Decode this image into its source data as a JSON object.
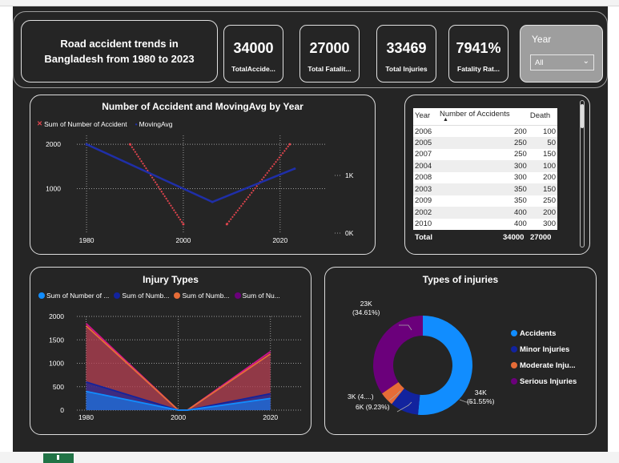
{
  "header": {
    "title": "Road accident trends in Bangladesh from 1980 to 2023",
    "kpis": [
      {
        "value": "34000",
        "label": "TotalAccide..."
      },
      {
        "value": "27000",
        "label": "Total Fatalit..."
      },
      {
        "value": "33469",
        "label": "Total Injuries"
      },
      {
        "value": "7941%",
        "label": "Fatality Rat..."
      }
    ],
    "slicer": {
      "title": "Year",
      "selected": "All"
    }
  },
  "colors": {
    "background": "#252525",
    "accidents_line": "#e0444d",
    "moving_avg": "#1f2fa8",
    "blue": "#118dff",
    "dark_blue": "#12239e",
    "orange": "#e66c37",
    "purple": "#6b007b"
  },
  "line_chart": {
    "title": "Number of Accident and MovingAvg by Year",
    "legend": [
      "Sum of Number of Accident",
      "MovingAvg"
    ],
    "y_ticks": [
      "2000",
      "1000"
    ],
    "y2_ticks": [
      "1K",
      "0K"
    ],
    "x_ticks": [
      "1980",
      "2000",
      "2020"
    ]
  },
  "table": {
    "columns": [
      "Year",
      "Number of Accidents",
      "Death"
    ],
    "rows": [
      [
        "2006",
        "200",
        "100"
      ],
      [
        "2005",
        "250",
        "50"
      ],
      [
        "2007",
        "250",
        "150"
      ],
      [
        "2004",
        "300",
        "100"
      ],
      [
        "2008",
        "300",
        "200"
      ],
      [
        "2003",
        "350",
        "150"
      ],
      [
        "2009",
        "350",
        "250"
      ],
      [
        "2002",
        "400",
        "200"
      ],
      [
        "2010",
        "400",
        "300"
      ]
    ],
    "total": {
      "label": "Total",
      "accidents": "34000",
      "death": "27000"
    }
  },
  "area_chart": {
    "title": "Injury Types",
    "legend": [
      "Sum of Number of ...",
      "Sum of Numb...",
      "Sum of Numb...",
      "Sum of Nu..."
    ],
    "y_ticks": [
      "2000",
      "1500",
      "1000",
      "500",
      "0"
    ],
    "x_ticks": [
      "1980",
      "2000",
      "2020"
    ]
  },
  "donut": {
    "title": "Types of injuries",
    "legend": [
      "Accidents",
      "Minor Injuries",
      "Moderate Inju...",
      "Serious Injuries"
    ],
    "labels": {
      "serious": [
        "23K",
        "(34.61%)"
      ],
      "accidents": [
        "34K",
        "(51.55%)"
      ],
      "moderate": "3K (4....)",
      "minor": "6K (9.23%)"
    }
  },
  "chart_data": [
    {
      "type": "line",
      "title": "Number of Accident and MovingAvg by Year",
      "x": [
        1980,
        2000,
        2020
      ],
      "series": [
        {
          "name": "Sum of Number of Accident",
          "x": [
            1989,
            2000,
            2009,
            2022
          ],
          "values": [
            2000,
            200,
            200,
            2000
          ]
        },
        {
          "name": "MovingAvg",
          "x": [
            1980,
            2006,
            2023
          ],
          "values": [
            2000,
            700,
            1450
          ]
        }
      ],
      "ylim": [
        0,
        2200
      ]
    },
    {
      "type": "area",
      "title": "Injury Types",
      "x": [
        1980,
        2000,
        2002,
        2020
      ],
      "series": [
        {
          "name": "Sum of Number of ...",
          "values": [
            400,
            0,
            0,
            250
          ]
        },
        {
          "name": "Sum of Numb...",
          "values": [
            600,
            0,
            0,
            350
          ]
        },
        {
          "name": "Sum of Numb...",
          "values": [
            1800,
            0,
            0,
            1200
          ]
        },
        {
          "name": "Sum of Nu...",
          "values": [
            1850,
            0,
            0,
            1250
          ]
        }
      ],
      "ylim": [
        0,
        2000
      ]
    },
    {
      "type": "pie",
      "title": "Types of injuries",
      "categories": [
        "Accidents",
        "Minor Injuries",
        "Moderate Inju...",
        "Serious Injuries"
      ],
      "values": [
        51.55,
        9.23,
        4.61,
        34.61
      ]
    }
  ]
}
